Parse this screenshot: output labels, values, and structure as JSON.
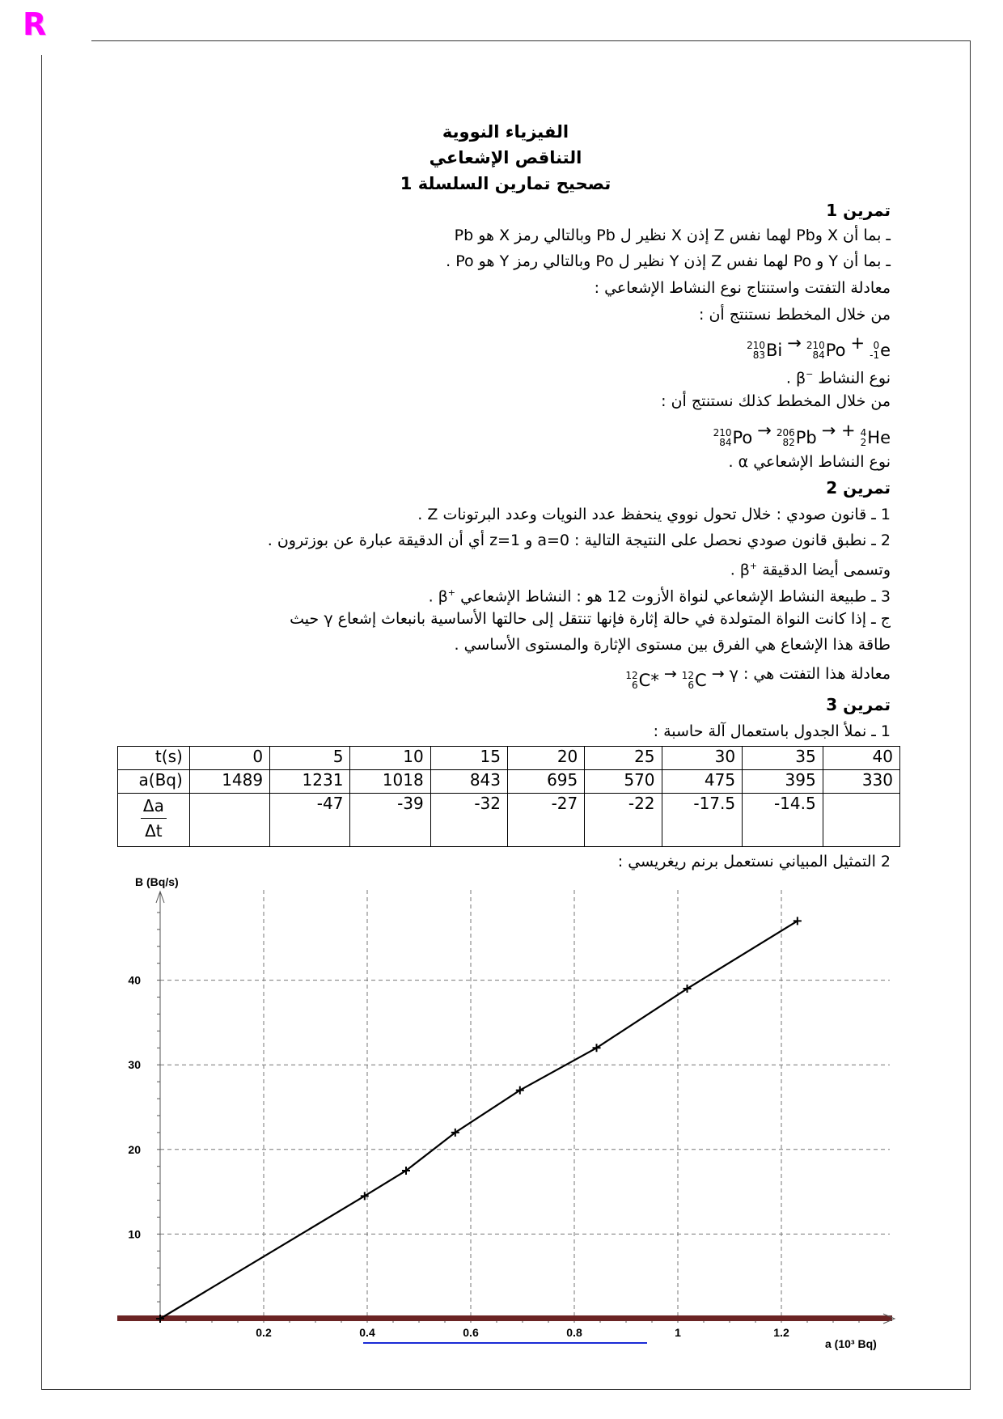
{
  "logo": "R",
  "titles": [
    "الفيزياء النووية",
    "التناقص الإشعاعي",
    "تصحيح تمارين السلسلة 1"
  ],
  "ex1": {
    "heading": "تمرين 1",
    "l1": "ـ بما أن X وPb لهما نفس Z إذن X نظير ل Pb وبالتالي رمز X هو Pb",
    "l2": "ـ بما أن Y و Po لهما نفس Z إذن Y نظير ل Po وبالتالي رمز Y هو Po .",
    "l3": "معادلة التفتت واستنتاج نوع النشاط الإشعاعي :",
    "l4": "من خلال المخطط نستنتج أن :",
    "eq1": [
      {
        "a": "210",
        "z": "83",
        "s": "Bi"
      },
      {
        "a": "210",
        "z": "84",
        "s": "Po"
      },
      {
        "a": "0",
        "z": "-1",
        "s": "e"
      }
    ],
    "l5": "نوع النشاط",
    "l5_sym": "β",
    "l5_sup": "−",
    "dot": ".",
    "l6": "من خلال المخطط كذلك نستنتج أن :",
    "eq2": [
      {
        "a": "210",
        "z": "84",
        "s": "Po"
      },
      {
        "a": "206",
        "z": "82",
        "s": "Pb"
      },
      {
        "a": "4",
        "z": "2",
        "s": "He"
      }
    ],
    "l7": "نوع النشاط الإشعاعي",
    "l7_sym": "α"
  },
  "ex2": {
    "heading": "تمرين 2",
    "l1": "1 ـ قانون صودي : خلال تحول نووي ينحفظ عدد النويات وعدد البرتونات Z .",
    "l2": "2 ـ نطبق قانون صودي نحصل على النتيجة التالية : a=0 و z=1 أي أن الدقيقة عبارة عن بوزترون .",
    "l3": "وتسمى أيضا الدقيقة",
    "l4": "3 ـ طبيعة النشاط الإشعاعي لنواة الأزوت  12 هو : النشاط الإشعاعي",
    "beta": "β",
    "plus": "+",
    "l5": "ج ـ إذا كانت النواة المتولدة في حالة إثارة فإنها تنتقل إلى حالتها الأساسية بانبعاث إشعاع γ حيث",
    "l6": "طاقة هذا الإشعاع هي الفرق بين مستوى الإثارة والمستوى الأساسي .",
    "l7": "معادلة هذا التفتت هي :",
    "eq3": [
      {
        "a": "12",
        "z": "6",
        "s": "C*"
      },
      {
        "a": "12",
        "z": "6",
        "s": "C"
      }
    ],
    "gamma": "γ"
  },
  "ex3": {
    "heading": "تمرين 3",
    "l1": "1 ـ نملأ الجدول باستعمال آلة حاسبة :",
    "table": {
      "t_label": "t(s)",
      "t": [
        "0",
        "5",
        "10",
        "15",
        "20",
        "25",
        "30",
        "35",
        "40"
      ],
      "a_label": "a(Bq)",
      "a": [
        "1489",
        "1231",
        "1018",
        "843",
        "695",
        "570",
        "475",
        "395",
        "330"
      ],
      "d_num": "Δa",
      "d_den": "Δt",
      "d": [
        "",
        "-47",
        "-39",
        "-32",
        "-27",
        "-22",
        "-17.5",
        "-14.5",
        ""
      ]
    },
    "l2": "2 التمثيل المبياني نستعمل برنم ريغريسي :"
  },
  "chart_data": {
    "type": "line",
    "xlabel": "a (10³ Bq)",
    "ylabel": "B (Bq/s)",
    "x": [
      0,
      0.395,
      0.475,
      0.57,
      0.695,
      0.843,
      1.018,
      1.231
    ],
    "y": [
      0,
      14.5,
      17.5,
      22,
      27,
      32,
      39,
      47
    ],
    "xticks": [
      "0.2",
      "0.4",
      "0.6",
      "0.8",
      "1",
      "1.2"
    ],
    "yticks": [
      "10",
      "20",
      "30",
      "40"
    ],
    "xlim": [
      0,
      1.4
    ],
    "ylim": [
      0,
      49
    ],
    "grid": true,
    "marker": "+",
    "colors": {
      "line": "#000000",
      "axis_band": "#6b2424",
      "underline": "#1a2bd6"
    }
  }
}
